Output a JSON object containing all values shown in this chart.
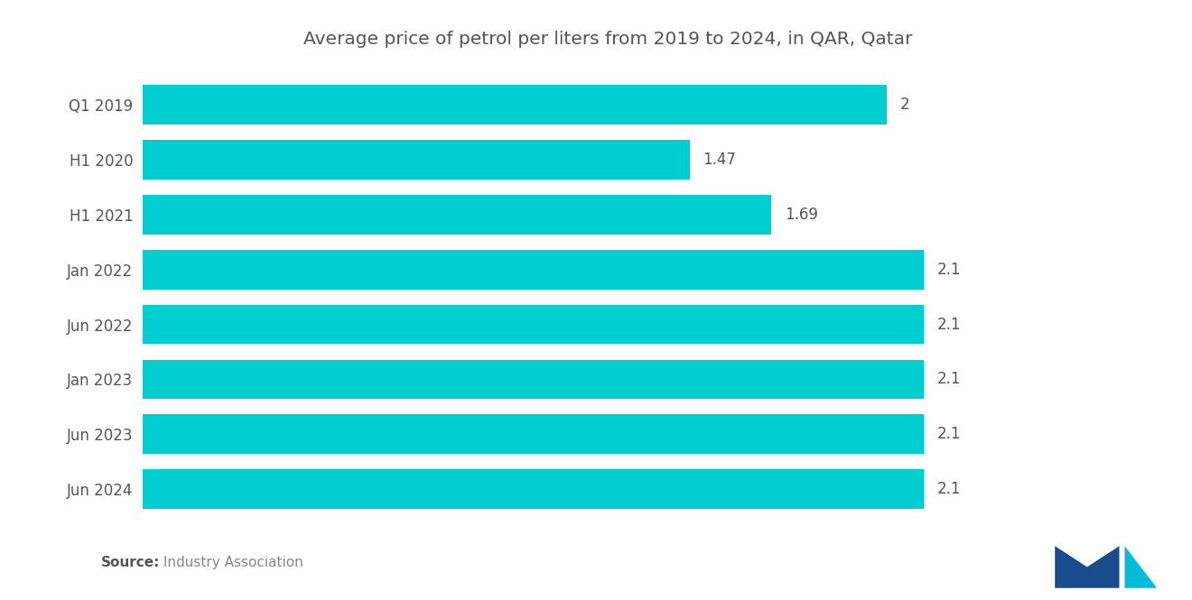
{
  "title": "Average price of petrol per liters from 2019 to 2024, in QAR, Qatar",
  "categories": [
    "Q1 2019",
    "H1 2020",
    "H1 2021",
    "Jan 2022",
    "Jun 2022",
    "Jan 2023",
    "Jun 2023",
    "Jun 2024"
  ],
  "values": [
    2.0,
    1.47,
    1.69,
    2.1,
    2.1,
    2.1,
    2.1,
    2.1
  ],
  "value_labels": [
    "2",
    "1.47",
    "1.69",
    "2.1",
    "2.1",
    "2.1",
    "2.1",
    "2.1"
  ],
  "bar_color": "#00CED1",
  "background_color": "#ffffff",
  "title_color": "#555555",
  "label_color": "#555555",
  "value_label_color": "#555555",
  "source_bold": "Source:",
  "source_normal": " Industry Association",
  "xlim_max": 2.5,
  "title_fontsize": 14.5,
  "tick_fontsize": 12,
  "value_fontsize": 12,
  "source_fontsize": 11,
  "bar_height": 0.72
}
